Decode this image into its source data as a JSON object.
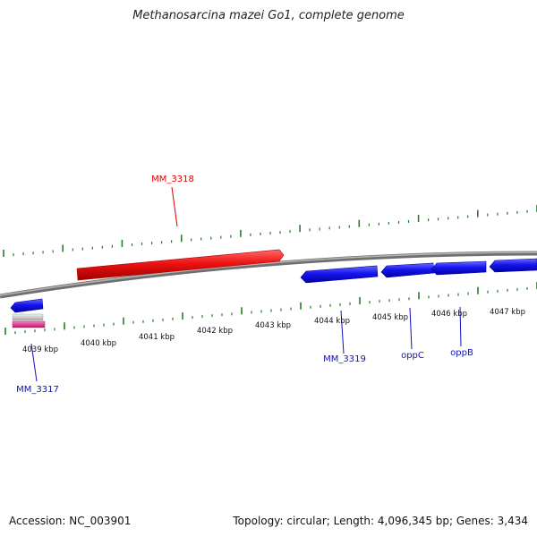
{
  "title": "Methanosarcina mazei Go1, complete genome",
  "footer": {
    "accession": "Accession: NC_003901",
    "summary": "Topology: circular; Length: 4,096,345 bp; Genes: 3,434"
  },
  "ticks": {
    "labels": [
      "4039 kbp",
      "4040 kbp",
      "4041 kbp",
      "4042 kbp",
      "4043 kbp",
      "4044 kbp",
      "4045 kbp",
      "4046 kbp",
      "4047 kbp"
    ]
  },
  "genes": [
    {
      "label": "MM_3318",
      "color": "#e00000"
    },
    {
      "label": "MM_3317",
      "color": "#1010c0"
    },
    {
      "label": "MM_3319",
      "color": "#1010c0"
    },
    {
      "label": "oppC",
      "color": "#1010c0"
    },
    {
      "label": "oppB",
      "color": "#1010c0"
    }
  ],
  "colors": {
    "forward_gene": "#ee1111",
    "reverse_gene": "#1515ee",
    "tick": "#2a7a2a",
    "backbone": "#8a8a8a",
    "rna_feature": "#e8178a",
    "pseudo_feature": "#c8c8c8"
  }
}
